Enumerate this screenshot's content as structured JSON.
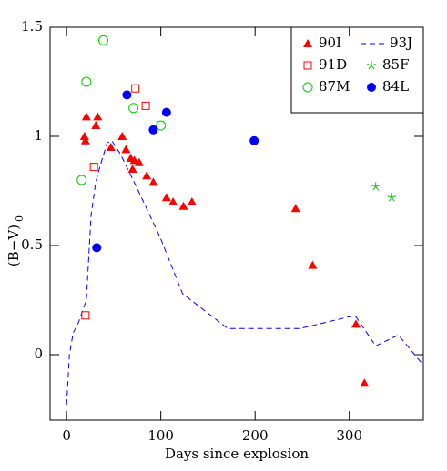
{
  "chart_data": {
    "type": "scatter",
    "xlabel": "Days since explosion",
    "ylabel": "(B−V)",
    "ylabel_sub": "0",
    "xlim": [
      -17.5,
      378.5
    ],
    "ylim": [
      -0.3,
      1.5
    ],
    "xticks": [
      0,
      100,
      200,
      300
    ],
    "yticks": [
      0,
      0.5,
      1,
      1.5
    ],
    "legend": "upper right",
    "series": [
      {
        "name": "90I",
        "color": "#ff0000",
        "marker": "triangle",
        "x": [
          21,
          33,
          31,
          19,
          20,
          47,
          59,
          63,
          68,
          72,
          70,
          77,
          85,
          92,
          106,
          113,
          124,
          133,
          243,
          261,
          307,
          316
        ],
        "y": [
          1.09,
          1.09,
          1.05,
          1.0,
          0.98,
          0.95,
          1.0,
          0.94,
          0.9,
          0.89,
          0.85,
          0.88,
          0.82,
          0.79,
          0.72,
          0.7,
          0.68,
          0.7,
          0.67,
          0.41,
          0.14,
          -0.13
        ]
      },
      {
        "name": "93J",
        "color": "#0000ff",
        "marker": "dashed-line",
        "x": [
          0,
          3,
          7,
          12,
          21,
          26,
          31,
          36,
          43,
          48,
          57,
          74,
          99,
          123,
          171,
          248,
          306,
          328,
          352,
          379
        ],
        "y": [
          -0.23,
          0,
          0.1,
          0.14,
          0.25,
          0.64,
          0.79,
          0.87,
          0.97,
          0.98,
          0.92,
          0.77,
          0.54,
          0.28,
          0.12,
          0.12,
          0.18,
          0.04,
          0.09,
          -0.05
        ]
      },
      {
        "name": "91D",
        "color": "#ff0000",
        "marker": "square-open",
        "x": [
          20,
          29,
          73,
          84
        ],
        "y": [
          0.18,
          0.86,
          1.22,
          1.14
        ]
      },
      {
        "name": "85F",
        "color": "#00cc00",
        "marker": "star",
        "x": [
          328,
          345
        ],
        "y": [
          0.77,
          0.72
        ]
      },
      {
        "name": "87M",
        "color": "#00cc00",
        "marker": "circle-open",
        "x": [
          16,
          21,
          39,
          71,
          100
        ],
        "y": [
          0.8,
          1.25,
          1.44,
          1.13,
          1.05
        ]
      },
      {
        "name": "84L",
        "color": "#0000ff",
        "marker": "circle",
        "x": [
          32,
          64,
          92,
          106,
          199
        ],
        "y": [
          0.49,
          1.19,
          1.03,
          1.11,
          0.98
        ]
      }
    ]
  }
}
